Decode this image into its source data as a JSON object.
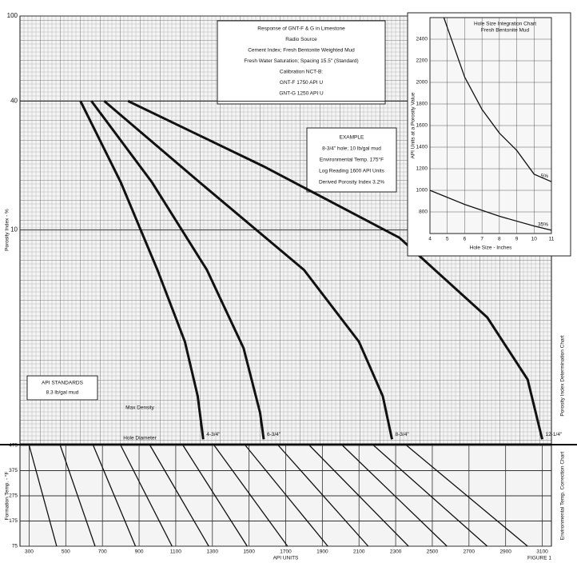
{
  "chart_data": [
    {
      "type": "line",
      "log_y": true,
      "y_label": "Porosity Index - %",
      "side_label": "Porosity Index Determination Chart",
      "xlim": [
        250,
        3150
      ],
      "ylim": [
        1,
        100
      ],
      "yticks": [
        10,
        40,
        100
      ],
      "notes": [
        "Response of GNT-F & G in Limestone",
        "Radio Source",
        "Cement Index; Fresh Bentonite Weighted Mud",
        "Fresh Water Saturation; Spacing 15.5\" (Standard)",
        "Calibration NCT-B:",
        "GNT-F 1750 API U",
        "GNT-G 1250 API U"
      ],
      "example": [
        "EXAMPLE",
        "8-3/4\" hole; 10 lb/gal mud",
        "Environmental Temp. 175°F",
        "Log Reading 1600 API Units",
        "Derived Porosity Index 3.2%"
      ],
      "standards": [
        "API STANDARDS",
        "8.3 lb/gal mud"
      ],
      "curve_labels": [
        "Max Density",
        "Hole Diameter"
      ],
      "series": [
        {
          "name": "4-3/4\"",
          "color": "#111111",
          "x": [
            580,
            800,
            1000,
            1150,
            1220,
            1250
          ],
          "values": [
            40,
            16.7,
            6.5,
            3.0,
            1.67,
            1.05
          ]
        },
        {
          "name": "6-3/4\"",
          "color": "#111111",
          "x": [
            640,
            970,
            1270,
            1470,
            1560,
            1580
          ],
          "values": [
            40,
            16.7,
            6.5,
            2.8,
            1.4,
            1.05
          ]
        },
        {
          "name": "8-3/4\"",
          "color": "#111111",
          "x": [
            710,
            1230,
            1800,
            2100,
            2230,
            2280
          ],
          "values": [
            40,
            16.7,
            6.5,
            3.0,
            1.67,
            1.05
          ]
        },
        {
          "name": "12-1/4\"",
          "color": "#111111",
          "x": [
            840,
            1580,
            2320,
            2800,
            3020,
            3100
          ],
          "values": [
            40,
            19.8,
            9.2,
            3.9,
            2.0,
            1.05
          ]
        }
      ]
    },
    {
      "type": "line",
      "title": "Hole Size Integration Chart",
      "subtitle": "Fresh Bentonite Mud",
      "x_label": "Hole Size - Inches",
      "y_label": "API Units at a Porosity Value",
      "xlim": [
        4,
        11
      ],
      "xticks": [
        4,
        5,
        6,
        7,
        8,
        9,
        10,
        11
      ],
      "ylim": [
        600,
        2600
      ],
      "yticks": [
        800,
        1000,
        1200,
        1400,
        1600,
        1800,
        2000,
        2200,
        2400
      ],
      "series": [
        {
          "name": "5%",
          "color": "#111111",
          "x": [
            4.8,
            6,
            7,
            8,
            9,
            10,
            11
          ],
          "values": [
            2600,
            2050,
            1750,
            1530,
            1370,
            1150,
            1080
          ]
        },
        {
          "name": "35%",
          "color": "#111111",
          "x": [
            4,
            6,
            8,
            10,
            11
          ],
          "values": [
            1000,
            870,
            760,
            670,
            630
          ]
        }
      ]
    },
    {
      "type": "line",
      "x_label": "API UNITS",
      "y_label": "Formation Temp. - °F",
      "side_label": "Environmental Temp. Correction Chart",
      "figure_label": "FIGURE 1",
      "color": "#111111",
      "xlim": [
        250,
        3150
      ],
      "xticks": [
        300,
        500,
        700,
        900,
        1100,
        1300,
        1500,
        1700,
        1900,
        2100,
        2300,
        2500,
        2700,
        2900,
        3100
      ],
      "ylim": [
        75,
        475
      ],
      "yticks": [
        75,
        175,
        275,
        375,
        475
      ],
      "series": [
        {
          "x": [
            450,
            300
          ],
          "values": [
            75,
            475
          ]
        },
        {
          "x": [
            660,
            470
          ],
          "values": [
            75,
            475
          ]
        },
        {
          "x": [
            880,
            650
          ],
          "values": [
            75,
            475
          ]
        },
        {
          "x": [
            1080,
            800
          ],
          "values": [
            75,
            475
          ]
        },
        {
          "x": [
            1280,
            960
          ],
          "values": [
            75,
            475
          ]
        },
        {
          "x": [
            1490,
            1140
          ],
          "values": [
            75,
            475
          ]
        },
        {
          "x": [
            1710,
            1310
          ],
          "values": [
            75,
            475
          ]
        },
        {
          "x": [
            1930,
            1480
          ],
          "values": [
            75,
            475
          ]
        },
        {
          "x": [
            2150,
            1660
          ],
          "values": [
            75,
            475
          ]
        },
        {
          "x": [
            2370,
            1830
          ],
          "values": [
            75,
            475
          ]
        },
        {
          "x": [
            2580,
            2010
          ],
          "values": [
            75,
            475
          ]
        },
        {
          "x": [
            2800,
            2180
          ],
          "values": [
            75,
            475
          ]
        },
        {
          "x": [
            3020,
            2360
          ],
          "values": [
            75,
            475
          ]
        }
      ]
    }
  ]
}
